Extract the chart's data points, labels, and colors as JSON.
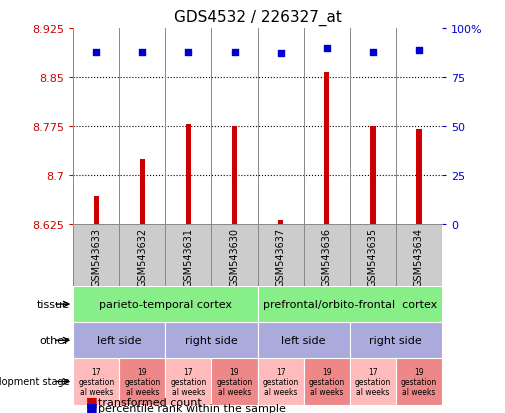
{
  "title": "GDS4532 / 226327_at",
  "samples": [
    "GSM543633",
    "GSM543632",
    "GSM543631",
    "GSM543630",
    "GSM543637",
    "GSM543636",
    "GSM543635",
    "GSM543634"
  ],
  "bar_values": [
    8.668,
    8.724,
    8.778,
    8.775,
    8.632,
    8.858,
    8.775,
    8.77
  ],
  "percentile_values": [
    88,
    88,
    88,
    88,
    87,
    90,
    88,
    89
  ],
  "ylim_left": [
    8.625,
    8.925
  ],
  "ylim_right": [
    0,
    100
  ],
  "yticks_left": [
    8.625,
    8.7,
    8.775,
    8.85,
    8.925
  ],
  "yticks_right": [
    0,
    25,
    50,
    75,
    100
  ],
  "ytick_labels_left": [
    "8.625",
    "8.7",
    "8.775",
    "8.85",
    "8.925"
  ],
  "ytick_labels_right": [
    "0",
    "25",
    "50",
    "75",
    "100%"
  ],
  "bar_color": "#cc0000",
  "percentile_color": "#0000cc",
  "bar_bottom": 8.625,
  "bar_width": 0.12,
  "tissue_groups": [
    {
      "label": "parieto-temporal cortex",
      "start": 0,
      "end": 4,
      "color": "#88ee88"
    },
    {
      "label": "prefrontal/orbito-frontal  cortex",
      "start": 4,
      "end": 8,
      "color": "#88ee88"
    }
  ],
  "other_groups": [
    {
      "label": "left side",
      "start": 0,
      "end": 2,
      "color": "#aaaadd"
    },
    {
      "label": "right side",
      "start": 2,
      "end": 4,
      "color": "#aaaadd"
    },
    {
      "label": "left side",
      "start": 4,
      "end": 6,
      "color": "#aaaadd"
    },
    {
      "label": "right side",
      "start": 6,
      "end": 8,
      "color": "#aaaadd"
    }
  ],
  "dev_groups": [
    {
      "label": "17\ngestation\nal weeks",
      "start": 0,
      "end": 1,
      "color": "#ffbbbb"
    },
    {
      "label": "19\ngestation\nal weeks",
      "start": 1,
      "end": 2,
      "color": "#ee8888"
    },
    {
      "label": "17\ngestation\nal weeks",
      "start": 2,
      "end": 3,
      "color": "#ffbbbb"
    },
    {
      "label": "19\ngestation\nal weeks",
      "start": 3,
      "end": 4,
      "color": "#ee8888"
    },
    {
      "label": "17\ngestation\nal weeks",
      "start": 4,
      "end": 5,
      "color": "#ffbbbb"
    },
    {
      "label": "19\ngestation\nal weeks",
      "start": 5,
      "end": 6,
      "color": "#ee8888"
    },
    {
      "label": "17\ngestation\nal weeks",
      "start": 6,
      "end": 7,
      "color": "#ffbbbb"
    },
    {
      "label": "19\ngestation\nal weeks",
      "start": 7,
      "end": 8,
      "color": "#ee8888"
    }
  ],
  "legend_bar_label": "transformed count",
  "legend_pct_label": "percentile rank within the sample",
  "bg_color": "#ffffff",
  "left_axis_color": "#cc0000",
  "right_axis_color": "#0000cc",
  "sample_box_color": "#cccccc",
  "sample_box_edge": "#888888",
  "separator_color": "#888888"
}
